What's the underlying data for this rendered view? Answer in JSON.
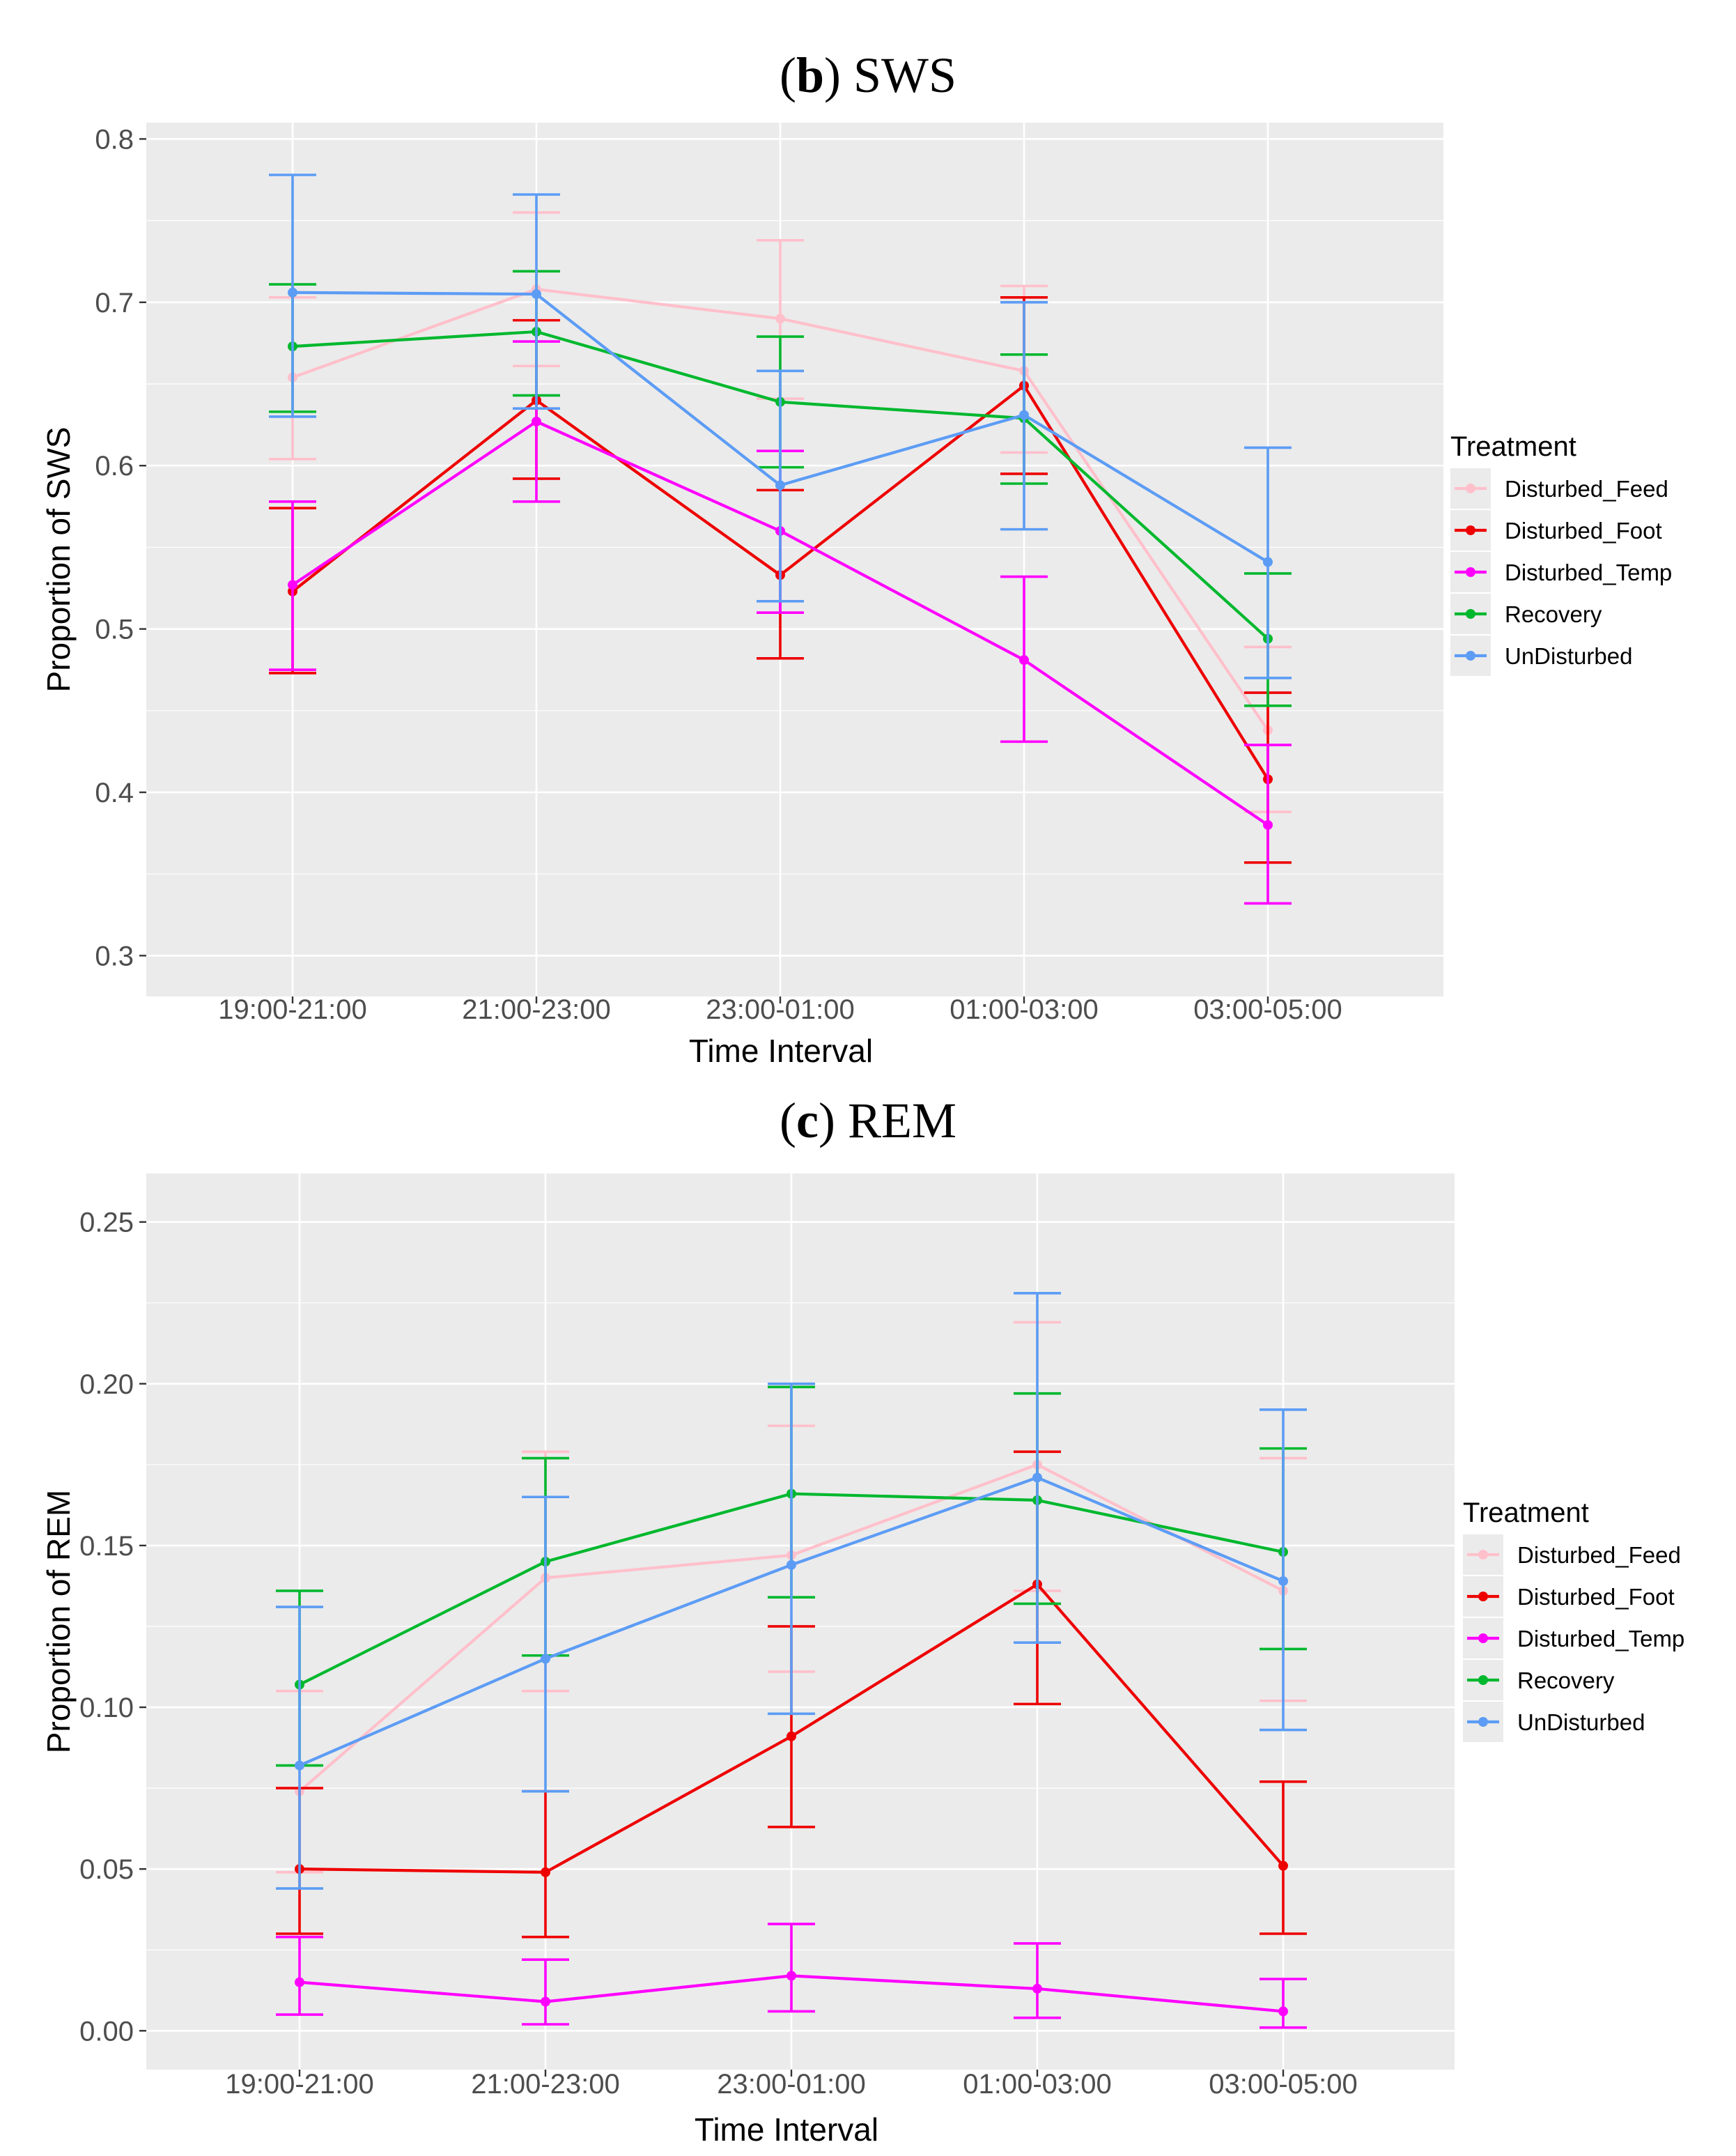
{
  "figure_titles": [
    {
      "letter": "b",
      "name": "SWS"
    },
    {
      "letter": "c",
      "name": "REM"
    }
  ],
  "colors": {
    "Disturbed_Feed": "#ffc0cb",
    "Disturbed_Foot": "#ee0000",
    "Disturbed_Temp": "#ff00ff",
    "Recovery": "#00b82e",
    "UnDisturbed": "#5c9cf5"
  },
  "chart_data": [
    {
      "type": "line",
      "title": "(b) SWS",
      "xlabel": "Time Interval",
      "ylabel": "Proportion of SWS",
      "ylim": [
        0.275,
        0.81
      ],
      "yticks": [
        "0.3",
        "0.4",
        "0.5",
        "0.6",
        "0.7",
        "0.8"
      ],
      "categories": [
        "19:00-21:00",
        "21:00-23:00",
        "23:00-01:00",
        "01:00-03:00",
        "03:00-05:00"
      ],
      "legend_title": "Treatment",
      "series": [
        {
          "name": "Disturbed_Feed",
          "values": [
            0.654,
            0.708,
            0.69,
            0.658,
            0.438
          ],
          "lower": [
            0.604,
            0.661,
            0.641,
            0.608,
            0.388
          ],
          "upper": [
            0.703,
            0.755,
            0.738,
            0.71,
            0.489
          ]
        },
        {
          "name": "Disturbed_Foot",
          "values": [
            0.523,
            0.64,
            0.533,
            0.649,
            0.408
          ],
          "lower": [
            0.473,
            0.592,
            0.482,
            0.595,
            0.357
          ],
          "upper": [
            0.574,
            0.689,
            0.585,
            0.703,
            0.461
          ]
        },
        {
          "name": "Disturbed_Temp",
          "values": [
            0.527,
            0.627,
            0.56,
            0.481,
            0.38
          ],
          "lower": [
            0.475,
            0.578,
            0.51,
            0.431,
            0.332
          ],
          "upper": [
            0.578,
            0.676,
            0.609,
            0.532,
            0.429
          ]
        },
        {
          "name": "Recovery",
          "values": [
            0.673,
            0.682,
            0.639,
            0.629,
            0.494
          ],
          "lower": [
            0.633,
            0.643,
            0.599,
            0.589,
            0.453
          ],
          "upper": [
            0.711,
            0.719,
            0.679,
            0.668,
            0.534
          ]
        },
        {
          "name": "UnDisturbed",
          "values": [
            0.706,
            0.705,
            0.588,
            0.631,
            0.541
          ],
          "lower": [
            0.63,
            0.635,
            0.517,
            0.561,
            0.47
          ],
          "upper": [
            0.778,
            0.766,
            0.658,
            0.7,
            0.611
          ]
        }
      ]
    },
    {
      "type": "line",
      "title": "(c) REM",
      "xlabel": "Time Interval",
      "ylabel": "Proportion of REM",
      "ylim": [
        -0.012,
        0.265
      ],
      "yticks": [
        "0.00",
        "0.05",
        "0.10",
        "0.15",
        "0.20",
        "0.25"
      ],
      "categories": [
        "19:00-21:00",
        "21:00-23:00",
        "23:00-01:00",
        "01:00-03:00",
        "03:00-05:00"
      ],
      "legend_title": "Treatment",
      "series": [
        {
          "name": "Disturbed_Feed",
          "values": [
            0.074,
            0.14,
            0.147,
            0.175,
            0.136
          ],
          "lower": [
            0.049,
            0.105,
            0.111,
            0.136,
            0.102
          ],
          "upper": [
            0.105,
            0.179,
            0.187,
            0.219,
            0.177
          ]
        },
        {
          "name": "Disturbed_Foot",
          "values": [
            0.05,
            0.049,
            0.091,
            0.138,
            0.051
          ],
          "lower": [
            0.03,
            0.029,
            0.063,
            0.101,
            0.03
          ],
          "upper": [
            0.075,
            0.074,
            0.125,
            0.179,
            0.077
          ]
        },
        {
          "name": "Disturbed_Temp",
          "values": [
            0.015,
            0.009,
            0.017,
            0.013,
            0.006
          ],
          "lower": [
            0.005,
            0.002,
            0.006,
            0.004,
            0.001
          ],
          "upper": [
            0.029,
            0.022,
            0.033,
            0.027,
            0.016
          ]
        },
        {
          "name": "Recovery",
          "values": [
            0.107,
            0.145,
            0.166,
            0.164,
            0.148
          ],
          "lower": [
            0.082,
            0.116,
            0.134,
            0.132,
            0.118
          ],
          "upper": [
            0.136,
            0.177,
            0.199,
            0.197,
            0.18
          ]
        },
        {
          "name": "UnDisturbed",
          "values": [
            0.082,
            0.115,
            0.144,
            0.171,
            0.139
          ],
          "lower": [
            0.044,
            0.074,
            0.098,
            0.12,
            0.093
          ],
          "upper": [
            0.131,
            0.165,
            0.2,
            0.228,
            0.192
          ]
        }
      ]
    }
  ]
}
